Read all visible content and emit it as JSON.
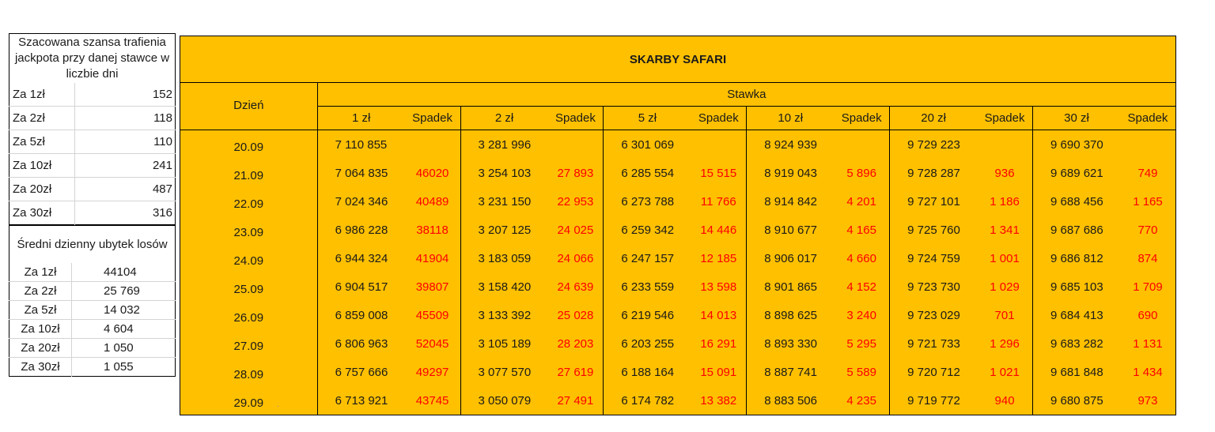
{
  "chance_table": {
    "header": "Szacowana szansa trafienia jackpota przy danej stawce w liczbie dni",
    "rows": [
      {
        "label": "Za 1zł",
        "value": "152"
      },
      {
        "label": "Za 2zł",
        "value": "118"
      },
      {
        "label": "Za 5zł",
        "value": "110"
      },
      {
        "label": "Za 10zł",
        "value": "241"
      },
      {
        "label": "Za 20zł",
        "value": "487"
      },
      {
        "label": "Za 30zł",
        "value": "316"
      }
    ]
  },
  "loss_table": {
    "header": "Średni dzienny ubytek losów",
    "rows": [
      {
        "label": "Za 1zł",
        "value": "44104"
      },
      {
        "label": "Za 2zł",
        "value": "25 769"
      },
      {
        "label": "Za 5zł",
        "value": "14 032"
      },
      {
        "label": "Za 10zł",
        "value": "4 604"
      },
      {
        "label": "Za 20zł",
        "value": "1 050"
      },
      {
        "label": "Za 30zł",
        "value": "1 055"
      }
    ]
  },
  "safari": {
    "title": "SKARBY SAFARI",
    "day_header": "Dzień",
    "stake_header": "Stawka",
    "columns": [
      "1 zł",
      "Spadek",
      "2 zł",
      "Spadek",
      "5 zł",
      "Spadek",
      "10 zł",
      "Spadek",
      "20 zł",
      "Spadek",
      "30 zł",
      "Spadek"
    ],
    "rows": [
      {
        "day": "20.09",
        "cells": [
          "7 110 855",
          "",
          "3 281 996",
          "",
          "6 301 069",
          "",
          "8 924 939",
          "",
          "9 729 223",
          "",
          "9 690 370",
          ""
        ]
      },
      {
        "day": "21.09",
        "cells": [
          "7 064 835",
          "46020",
          "3 254 103",
          "27 893",
          "6 285 554",
          "15 515",
          "8 919 043",
          "5 896",
          "9 728 287",
          "936",
          "9 689 621",
          "749"
        ]
      },
      {
        "day": "22.09",
        "cells": [
          "7 024 346",
          "40489",
          "3 231 150",
          "22 953",
          "6 273 788",
          "11 766",
          "8 914 842",
          "4 201",
          "9 727 101",
          "1 186",
          "9 688 456",
          "1 165"
        ]
      },
      {
        "day": "23.09",
        "cells": [
          "6 986 228",
          "38118",
          "3 207 125",
          "24 025",
          "6 259 342",
          "14 446",
          "8 910 677",
          "4 165",
          "9 725 760",
          "1 341",
          "9 687 686",
          "770"
        ]
      },
      {
        "day": "24.09",
        "cells": [
          "6 944 324",
          "41904",
          "3 183 059",
          "24 066",
          "6 247 157",
          "12 185",
          "8 906 017",
          "4 660",
          "9 724 759",
          "1 001",
          "9 686 812",
          "874"
        ]
      },
      {
        "day": "25.09",
        "cells": [
          "6 904 517",
          "39807",
          "3 158 420",
          "24 639",
          "6 233 559",
          "13 598",
          "8 901 865",
          "4 152",
          "9 723 730",
          "1 029",
          "9 685 103",
          "1 709"
        ]
      },
      {
        "day": "26.09",
        "cells": [
          "6 859 008",
          "45509",
          "3 133 392",
          "25 028",
          "6 219 546",
          "14 013",
          "8 898 625",
          "3 240",
          "9 723 029",
          "701",
          "9 684 413",
          "690"
        ]
      },
      {
        "day": "27.09",
        "cells": [
          "6 806 963",
          "52045",
          "3 105 189",
          "28 203",
          "6 203 255",
          "16 291",
          "8 893 330",
          "5 295",
          "9 721 733",
          "1 296",
          "9 683 282",
          "1 131"
        ]
      },
      {
        "day": "28.09",
        "cells": [
          "6 757 666",
          "49297",
          "3 077 570",
          "27 619",
          "6 188 164",
          "15 091",
          "8 887 741",
          "5 589",
          "9 720 712",
          "1 021",
          "9 681 848",
          "1 434"
        ]
      },
      {
        "day": "29.09",
        "cells": [
          "6 713 921",
          "43745",
          "3 050 079",
          "27 491",
          "6 174 782",
          "13 382",
          "8 883 506",
          "4 235",
          "9 719 772",
          "940",
          "9 680 875",
          "973"
        ]
      }
    ]
  },
  "colors": {
    "table_fill": "#ffc000",
    "drop_text": "#ff0000"
  }
}
